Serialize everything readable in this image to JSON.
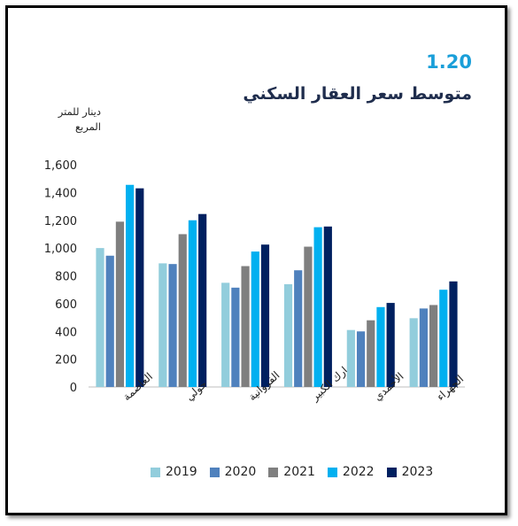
{
  "figure": {
    "number": "1.20",
    "title": "متوسط سعر العقار السكني",
    "unit_line1": "دينار للمتر",
    "unit_line2": "المربع"
  },
  "chart_data": {
    "type": "bar",
    "title": "متوسط سعر العقار السكني",
    "ylabel": "دينار للمتر المربع",
    "ylim": [
      0,
      1600
    ],
    "yticks": [
      0,
      200,
      400,
      600,
      800,
      1000,
      1200,
      1400,
      1600
    ],
    "ytick_labels": [
      "0",
      "200",
      "400",
      "600",
      "800",
      "1,000",
      "1,200",
      "1,400",
      "1,600"
    ],
    "categories": [
      "العاصمة",
      "حولي",
      "الفروانية",
      "مبارك الكبير",
      "الأحمدي",
      "الجهراء"
    ],
    "series": [
      {
        "name": "2019",
        "color": "#92cddc",
        "values": [
          1000,
          890,
          750,
          740,
          410,
          495
        ]
      },
      {
        "name": "2020",
        "color": "#4f81bd",
        "values": [
          945,
          885,
          715,
          840,
          400,
          565
        ]
      },
      {
        "name": "2021",
        "color": "#7f7f7f",
        "values": [
          1190,
          1100,
          870,
          1010,
          480,
          590
        ]
      },
      {
        "name": "2022",
        "color": "#00b0f0",
        "values": [
          1455,
          1200,
          975,
          1150,
          575,
          700
        ]
      },
      {
        "name": "2023",
        "color": "#002060",
        "values": [
          1430,
          1245,
          1025,
          1155,
          605,
          760
        ]
      }
    ],
    "grid": false,
    "legend_position": "bottom"
  }
}
